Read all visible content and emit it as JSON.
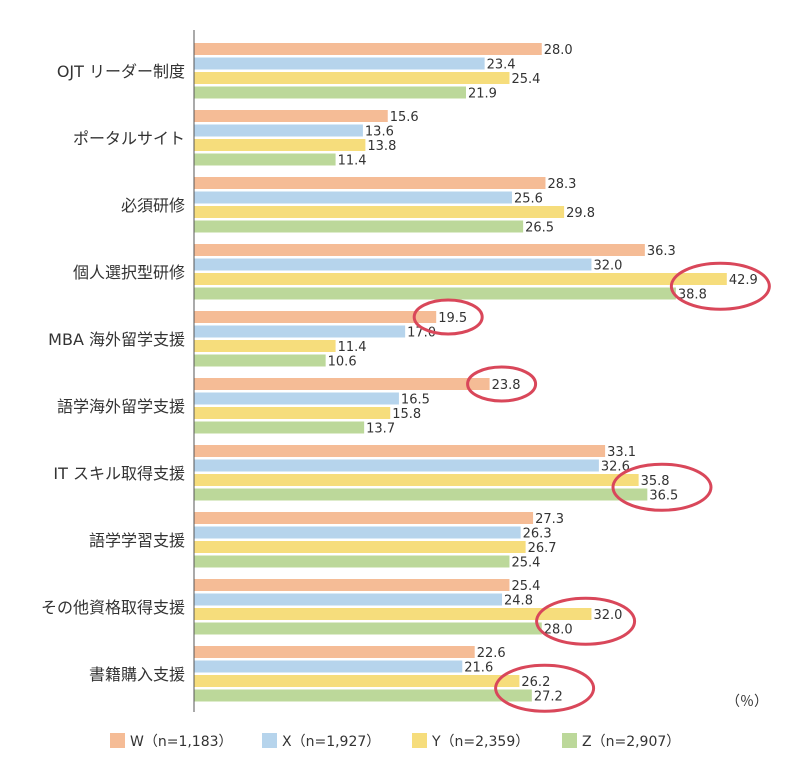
{
  "colors": {
    "W": "#f5bc96",
    "X": "#b6d4ec",
    "Y": "#f6dd7c",
    "Z": "#bcd89a",
    "axis": "#555555",
    "highlight": "#d9475a"
  },
  "chart_data": {
    "type": "bar",
    "orientation": "horizontal",
    "unit": "（％）",
    "categories": [
      "OJT リーダー制度",
      "ポータルサイト",
      "必須研修",
      "個人選択型研修",
      "MBA 海外留学支援",
      "語学海外留学支援",
      "IT スキル取得支援",
      "語学学習支援",
      "その他資格取得支援",
      "書籍購入支援"
    ],
    "series": [
      {
        "name": "W（n=1,183）",
        "key": "W",
        "values": [
          28.0,
          15.6,
          28.3,
          36.3,
          19.5,
          23.8,
          33.1,
          27.3,
          25.4,
          22.6
        ],
        "labels": [
          "28.0",
          "15.6",
          "28.3",
          "36.3",
          "19.5",
          "23.8",
          "33.1",
          "27.3",
          "25.4",
          "22.6"
        ]
      },
      {
        "name": "X（n=1,927）",
        "key": "X",
        "values": [
          23.4,
          13.6,
          25.6,
          32.0,
          17.0,
          16.5,
          32.6,
          26.3,
          24.8,
          21.6
        ],
        "labels": [
          "23.4",
          "13.6",
          "25.6",
          "32.0",
          "17.0",
          "16.5",
          "32.6",
          "26.3",
          "24.8",
          "21.6"
        ]
      },
      {
        "name": "Y（n=2,359）",
        "key": "Y",
        "values": [
          25.4,
          13.8,
          29.8,
          42.9,
          11.4,
          15.8,
          35.8,
          26.7,
          32.0,
          26.2
        ],
        "labels": [
          "25.4",
          "13.8",
          "29.8",
          "42.9",
          "11.4",
          "15.8",
          "35.8",
          "26.7",
          "32.0",
          "26.2"
        ]
      },
      {
        "name": "Z（n=2,907）",
        "key": "Z",
        "values": [
          21.9,
          11.4,
          26.5,
          38.8,
          10.6,
          13.7,
          36.5,
          25.4,
          28.0,
          27.2
        ],
        "labels": [
          "21.9",
          "11.4",
          "26.5",
          "38.8",
          "10.6",
          "13.7",
          "36.5",
          "25.4",
          "28.0",
          "27.2"
        ]
      }
    ],
    "highlights": [
      {
        "category": 3,
        "series": [
          "Y",
          "Z"
        ]
      },
      {
        "category": 4,
        "series": [
          "W"
        ]
      },
      {
        "category": 5,
        "series": [
          "W"
        ]
      },
      {
        "category": 6,
        "series": [
          "Y",
          "Z"
        ]
      },
      {
        "category": 8,
        "series": [
          "Y",
          "Z"
        ]
      },
      {
        "category": 9,
        "series": [
          "Y",
          "Z"
        ]
      }
    ],
    "legend_position": "bottom",
    "grid": false,
    "xlim": [
      0,
      45
    ]
  }
}
